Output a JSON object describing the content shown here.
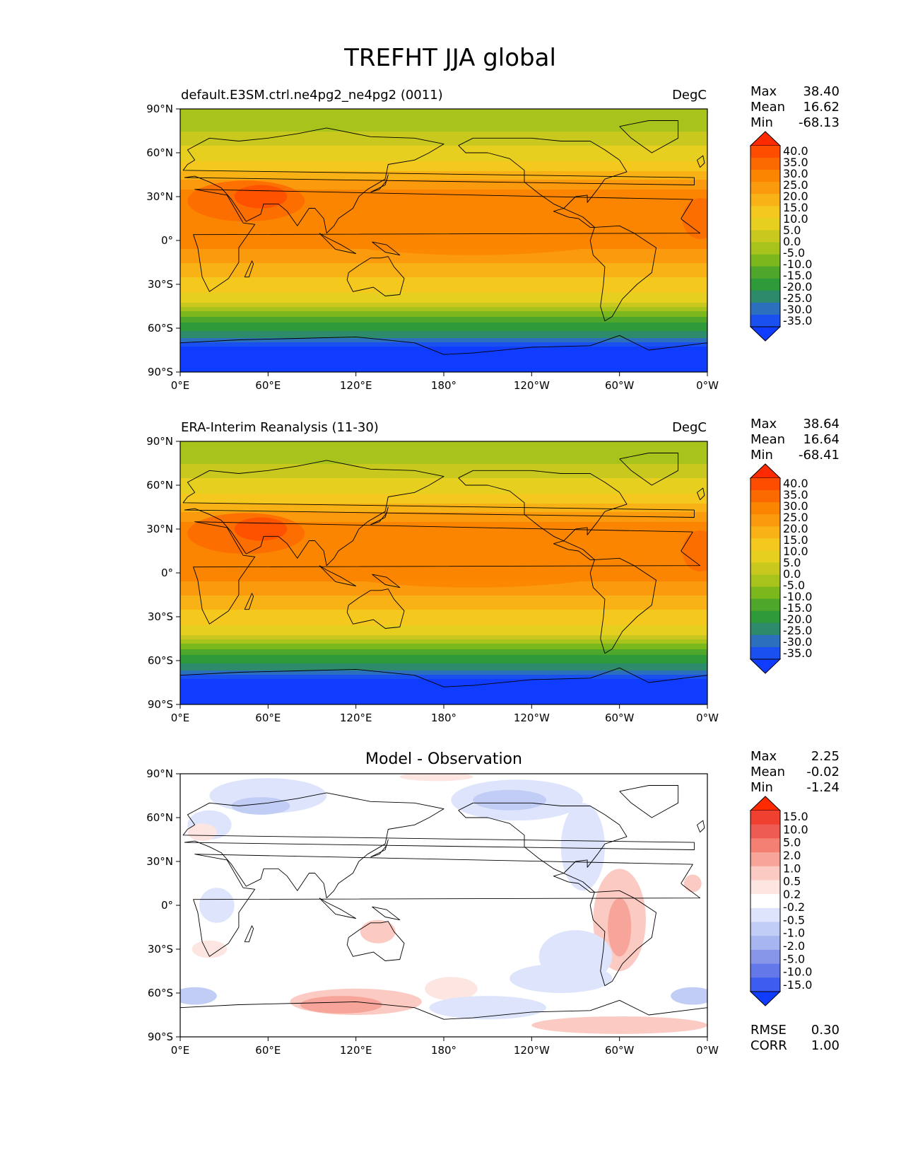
{
  "title": "TREFHT JJA global",
  "lat_ticks": [
    "90°N",
    "60°N",
    "30°N",
    "0°",
    "30°S",
    "60°S",
    "90°S"
  ],
  "lon_ticks": [
    "0°E",
    "60°E",
    "120°E",
    "180°",
    "120°W",
    "60°W",
    "0°W"
  ],
  "stat_labels": {
    "max": "Max",
    "mean": "Mean",
    "min": "Min",
    "rmse": "RMSE",
    "corr": "CORR"
  },
  "panels": [
    {
      "left_title": "default.E3SM.ctrl.ne4pg2_ne4pg2 (0011)",
      "center_title": "",
      "units": "DegC",
      "stats": {
        "max": "38.40",
        "mean": "16.62",
        "min": "-68.13"
      },
      "kind": "temperature",
      "colorbar": {
        "labels": [
          "40.0",
          "35.0",
          "30.0",
          "25.0",
          "20.0",
          "15.0",
          "10.0",
          "5.0",
          "0.0",
          "-5.0",
          "-10.0",
          "-15.0",
          "-20.0",
          "-25.0",
          "-30.0",
          "-35.0"
        ]
      }
    },
    {
      "left_title": "ERA-Interim Reanalysis (11-30)",
      "center_title": "",
      "units": "DegC",
      "stats": {
        "max": "38.64",
        "mean": "16.64",
        "min": "-68.41"
      },
      "kind": "temperature",
      "colorbar": {
        "labels": [
          "40.0",
          "35.0",
          "30.0",
          "25.0",
          "20.0",
          "15.0",
          "10.0",
          "5.0",
          "0.0",
          "-5.0",
          "-10.0",
          "-15.0",
          "-20.0",
          "-25.0",
          "-30.0",
          "-35.0"
        ]
      }
    },
    {
      "left_title": "",
      "center_title": "Model - Observation",
      "units": "",
      "stats": {
        "max": "2.25",
        "mean": "-0.02",
        "min": "-1.24"
      },
      "extra_stats": {
        "rmse": "0.30",
        "corr": "1.00"
      },
      "kind": "difference",
      "colorbar": {
        "labels": [
          "15.0",
          "10.0",
          "5.0",
          "2.0",
          "1.0",
          "0.5",
          "0.2",
          "-0.2",
          "-0.5",
          "-1.0",
          "-2.0",
          "-5.0",
          "-10.0",
          "-15.0"
        ]
      }
    }
  ],
  "colors": {
    "temperature_scale": [
      "#ff2a00",
      "#ff4d00",
      "#fb6a00",
      "#fb8500",
      "#fb9a0c",
      "#f8b215",
      "#f5c81e",
      "#e6cf1f",
      "#c8c81e",
      "#a8c41c",
      "#7ab81c",
      "#4ea72a",
      "#2f9a3a",
      "#2d8a6a",
      "#2c6fbd",
      "#1a50f0",
      "#0f3cff"
    ],
    "difference_scale": [
      "#ff2a00",
      "#f04030",
      "#ee5b52",
      "#f48074",
      "#f7a59a",
      "#fbcac2",
      "#fde6e2",
      "#ffffff",
      "#dde4fb",
      "#c2cdf5",
      "#a7b6f0",
      "#8896ea",
      "#6478ea",
      "#3d5cf0",
      "#0f3cff"
    ],
    "coastline": "#000000"
  },
  "chart_data": {
    "type": "heatmap",
    "variable": "TREFHT",
    "season": "JJA",
    "region": "global",
    "x_range": [
      0,
      360
    ],
    "y_range": [
      -90,
      90
    ],
    "projection": "PlateCarree, central longitude 180",
    "fields": [
      {
        "panel": "default.E3SM.ctrl.ne4pg2_ne4pg2 (0011)",
        "units": "DegC",
        "max": 38.4,
        "mean": 16.62,
        "min": -68.13,
        "contour_levels": [
          -35,
          -30,
          -25,
          -20,
          -15,
          -10,
          -5,
          0,
          5,
          10,
          15,
          20,
          25,
          30,
          35,
          40
        ],
        "zonal_band_approx_degC": {
          "90N": 0,
          "60N": 12,
          "30N": 27,
          "0": 26,
          "30S": 17,
          "60S": -5,
          "75S": -40,
          "90S": -55
        }
      },
      {
        "panel": "ERA-Interim Reanalysis (11-30)",
        "units": "DegC",
        "max": 38.64,
        "mean": 16.64,
        "min": -68.41,
        "contour_levels": [
          -35,
          -30,
          -25,
          -20,
          -15,
          -10,
          -5,
          0,
          5,
          10,
          15,
          20,
          25,
          30,
          35,
          40
        ],
        "zonal_band_approx_degC": {
          "90N": 0,
          "60N": 12,
          "30N": 27,
          "0": 26,
          "30S": 17,
          "60S": -5,
          "75S": -40,
          "90S": -55
        }
      },
      {
        "panel": "Model - Observation",
        "max": 2.25,
        "mean": -0.02,
        "min": -1.24,
        "rmse": 0.3,
        "corr": 1.0,
        "contour_levels": [
          -15,
          -10,
          -5,
          -2,
          -1,
          -0.5,
          -0.2,
          0.2,
          0.5,
          1,
          2,
          5,
          10,
          15
        ]
      }
    ]
  }
}
